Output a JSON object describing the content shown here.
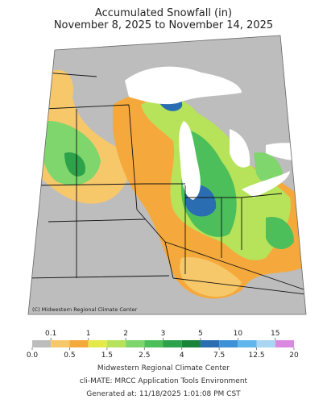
{
  "header": {
    "title": "Accumulated Snowfall (in)",
    "subtitle": "November 8, 2025 to November 14, 2025"
  },
  "map": {
    "credit": "(C) Midwestern Regional Climate Center"
  },
  "legend": {
    "bounds": [
      {
        "value": 0,
        "label": "0.0"
      },
      0.1,
      0.5,
      1,
      1.5,
      2,
      2.5,
      3,
      4,
      5,
      7.5,
      10,
      12.5,
      15,
      20
    ],
    "colors": [
      "#bdbdbd",
      "#f7c86a",
      "#f5a93c",
      "#e3ea4a",
      "#b6e35a",
      "#7fd66c",
      "#4cbf5a",
      "#2ca24a",
      "#16853a",
      "#2a6db0",
      "#3d91d6",
      "#62b6ec",
      "#a9d7f3",
      "#d98ae0"
    ]
  },
  "footer": {
    "lines": [
      "Midwestern Regional Climate Center",
      "cli-MATE: MRCC Application Tools Environment",
      "Generated at: 11/18/2025 1:01:08 PM CST"
    ]
  }
}
